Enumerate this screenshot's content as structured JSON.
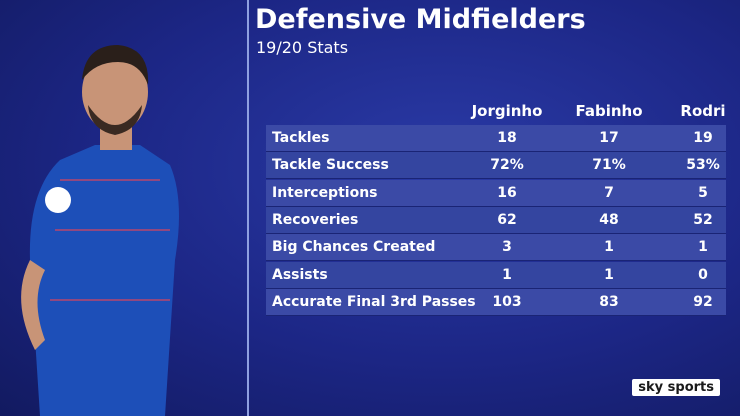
{
  "header": {
    "title": "Defensive Midfielders",
    "subtitle": "19/20 Stats"
  },
  "table": {
    "columns": [
      "Jorginho",
      "Fabinho",
      "Rodri"
    ],
    "rows": [
      [
        "Tackles",
        "18",
        "17",
        "19"
      ],
      [
        "Tackle Success",
        "72%",
        "71%",
        "53%"
      ],
      [
        "Interceptions",
        "16",
        "7",
        "5"
      ],
      [
        "Recoveries",
        "62",
        "48",
        "52"
      ],
      [
        "Big Chances Created",
        "3",
        "1",
        "1"
      ],
      [
        "Assists",
        "1",
        "1",
        "0"
      ],
      [
        "Accurate Final 3rd Passes",
        "103",
        "83",
        "92"
      ]
    ]
  },
  "branding": {
    "logo": "sky sports"
  }
}
